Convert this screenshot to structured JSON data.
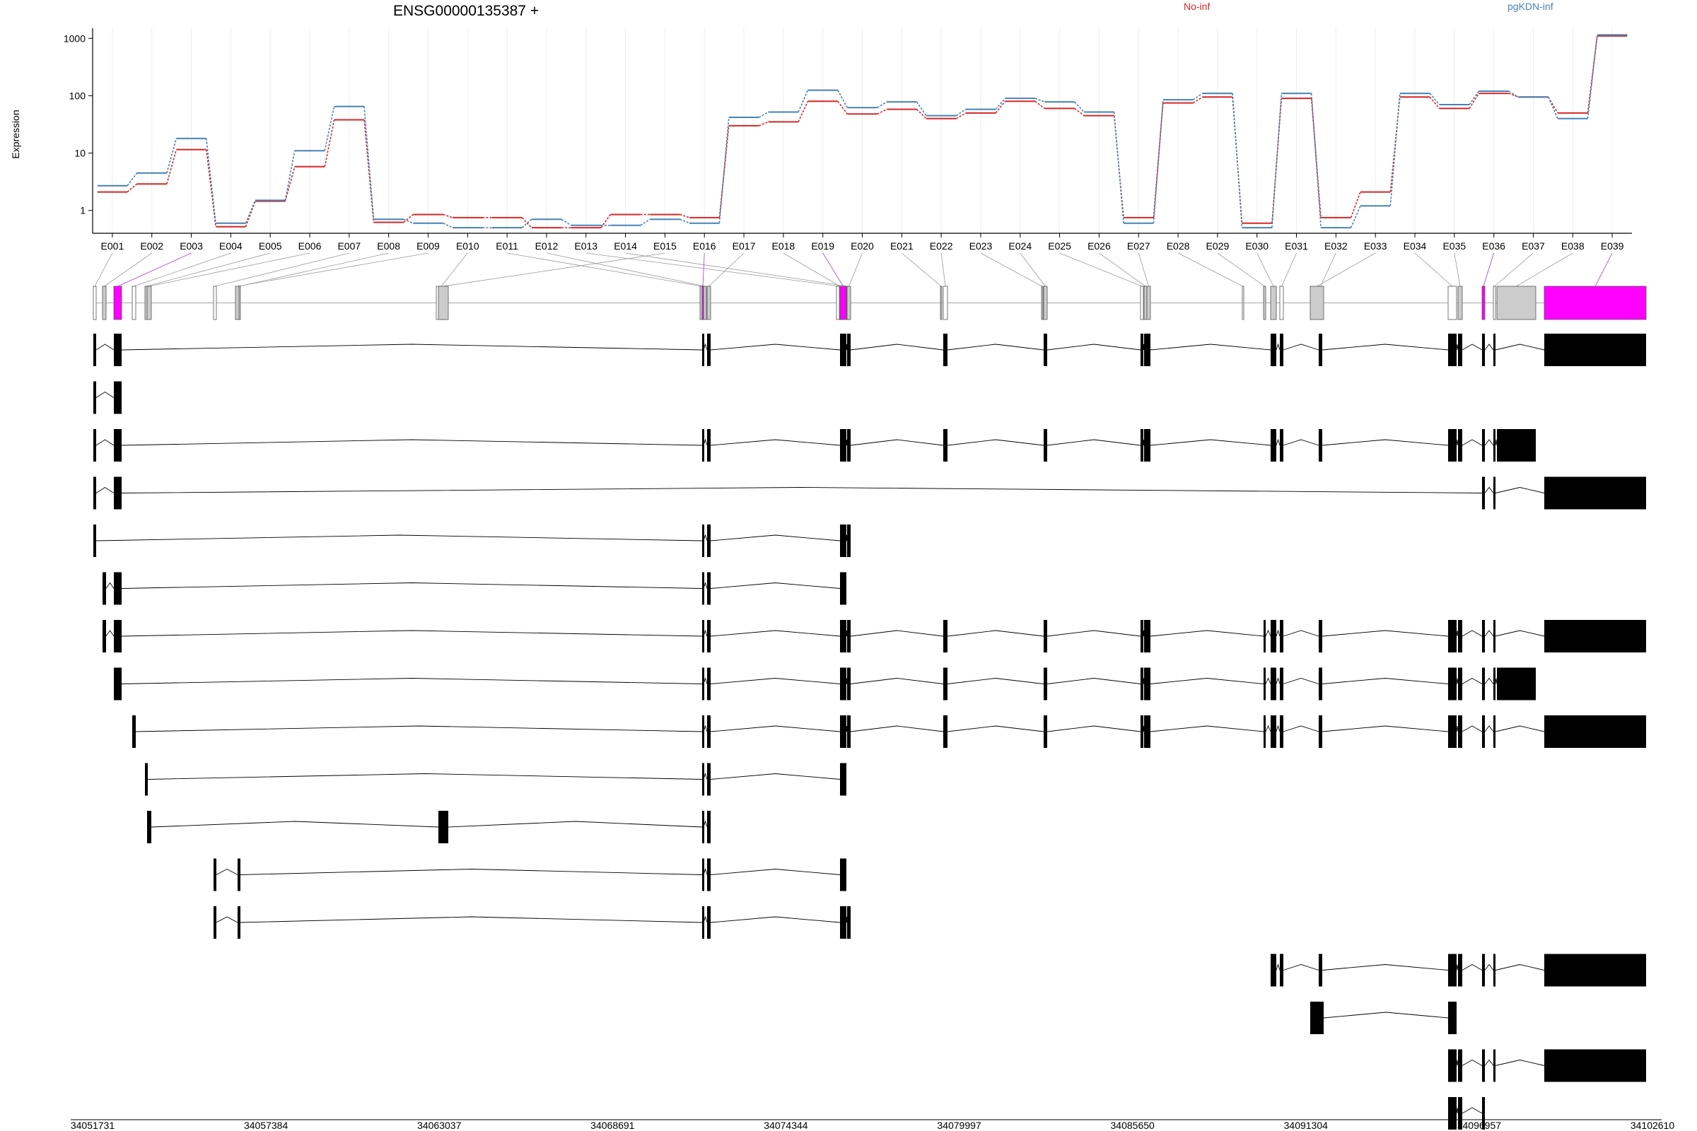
{
  "chart_data": {
    "type": "line",
    "title": "ENSG00000135387 +",
    "ylabel": "Expression",
    "yscale": "log",
    "ylim": [
      0.4,
      1500
    ],
    "yticks": [
      1,
      10,
      100,
      1000
    ],
    "legend": "top-right",
    "colors": {
      "No-inf": "#d62728",
      "pgKDN-inf": "#4682b4",
      "highlight": "#ff00ff",
      "exon_grey": "#cccccc"
    },
    "categories": [
      "E001",
      "E002",
      "E003",
      "E004",
      "E005",
      "E006",
      "E007",
      "E008",
      "E009",
      "E010",
      "E011",
      "E012",
      "E013",
      "E014",
      "E015",
      "E016",
      "E017",
      "E018",
      "E019",
      "E020",
      "E021",
      "E022",
      "E023",
      "E024",
      "E025",
      "E026",
      "E027",
      "E028",
      "E029",
      "E030",
      "E031",
      "E032",
      "E033",
      "E034",
      "E035",
      "E036",
      "E037",
      "E038",
      "E039"
    ],
    "series": [
      {
        "name": "No-inf",
        "values": [
          2.1,
          2.9,
          11.5,
          0.52,
          1.45,
          5.8,
          38,
          0.62,
          0.85,
          0.75,
          0.75,
          0.5,
          0.5,
          0.85,
          0.85,
          0.75,
          30,
          35,
          80,
          48,
          58,
          40,
          50,
          80,
          60,
          45,
          0.75,
          75,
          95,
          0.6,
          90,
          0.75,
          2.1,
          95,
          60,
          110,
          95,
          50,
          1100
        ]
      },
      {
        "name": "pgKDN-inf",
        "values": [
          2.7,
          4.5,
          18,
          0.6,
          1.5,
          11,
          65,
          0.7,
          0.6,
          0.5,
          0.5,
          0.7,
          0.55,
          0.55,
          0.7,
          0.6,
          42,
          52,
          125,
          62,
          78,
          45,
          58,
          90,
          78,
          52,
          0.6,
          85,
          110,
          0.5,
          110,
          0.5,
          1.2,
          110,
          70,
          120,
          95,
          40,
          1150
        ]
      }
    ],
    "exon_highlight": [
      "E003",
      "E016",
      "E019",
      "E036",
      "E039"
    ],
    "genomic_axis": {
      "ticks": [
        "34051731",
        "34057384",
        "34063037",
        "34068691",
        "34074344",
        "34079997",
        "34085650",
        "34091304",
        "34096957",
        "34102610"
      ]
    },
    "transcripts": [
      {
        "exons": [
          "E001",
          "E003",
          "E016",
          "E017",
          "E019",
          "E020",
          "E022",
          "E024",
          "E025",
          "E026",
          "E027",
          "E030",
          "E031",
          "E032",
          "E034",
          "E035",
          "E036",
          "E037",
          "E039"
        ]
      },
      {
        "exons": [
          "E001",
          "E003"
        ]
      },
      {
        "exons": [
          "E001",
          "E003",
          "E016",
          "E017",
          "E019",
          "E020",
          "E022",
          "E024",
          "E025",
          "E026",
          "E027",
          "E030",
          "E031",
          "E032",
          "E034",
          "E035",
          "E036",
          "E037",
          "E038"
        ]
      },
      {
        "exons": [
          "E001",
          "E003",
          "E036",
          "E037",
          "E039"
        ]
      },
      {
        "exons": [
          "E001",
          "E016",
          "E017",
          "E019",
          "E020"
        ]
      },
      {
        "exons": [
          "E002",
          "E003",
          "E016",
          "E017",
          "E019"
        ]
      },
      {
        "exons": [
          "E002",
          "E003",
          "E016",
          "E017",
          "E019",
          "E020",
          "E022",
          "E024",
          "E025",
          "E026",
          "E027",
          "E029",
          "E030",
          "E031",
          "E032",
          "E034",
          "E035",
          "E036",
          "E037",
          "E039"
        ]
      },
      {
        "exons": [
          "E003",
          "E016",
          "E017",
          "E019",
          "E020",
          "E022",
          "E024",
          "E025",
          "E026",
          "E027",
          "E029",
          "E030",
          "E031",
          "E032",
          "E034",
          "E035",
          "E036",
          "E037",
          "E038"
        ]
      },
      {
        "exons": [
          "E004",
          "E016",
          "E017",
          "E019",
          "E020",
          "E022",
          "E024",
          "E025",
          "E026",
          "E027",
          "E029",
          "E030",
          "E031",
          "E032",
          "E034",
          "E035",
          "E036",
          "E037",
          "E039"
        ]
      },
      {
        "exons": [
          "E005",
          "E016",
          "E017",
          "E019"
        ]
      },
      {
        "exons": [
          "E006",
          "E015",
          "E016",
          "E017"
        ]
      },
      {
        "exons": [
          "E007",
          "E008",
          "E016",
          "E017",
          "E019"
        ]
      },
      {
        "exons": [
          "E007",
          "E008",
          "E016",
          "E017",
          "E019",
          "E020"
        ]
      },
      {
        "exons": [
          "E030",
          "E031",
          "E032",
          "E034",
          "E035",
          "E036",
          "E037",
          "E039"
        ]
      },
      {
        "exons": [
          "E033",
          "E034"
        ]
      },
      {
        "exons": [
          "E034",
          "E035",
          "E036",
          "E037",
          "E039"
        ]
      },
      {
        "exons": [
          "E034",
          "E035",
          "E036"
        ]
      }
    ]
  }
}
